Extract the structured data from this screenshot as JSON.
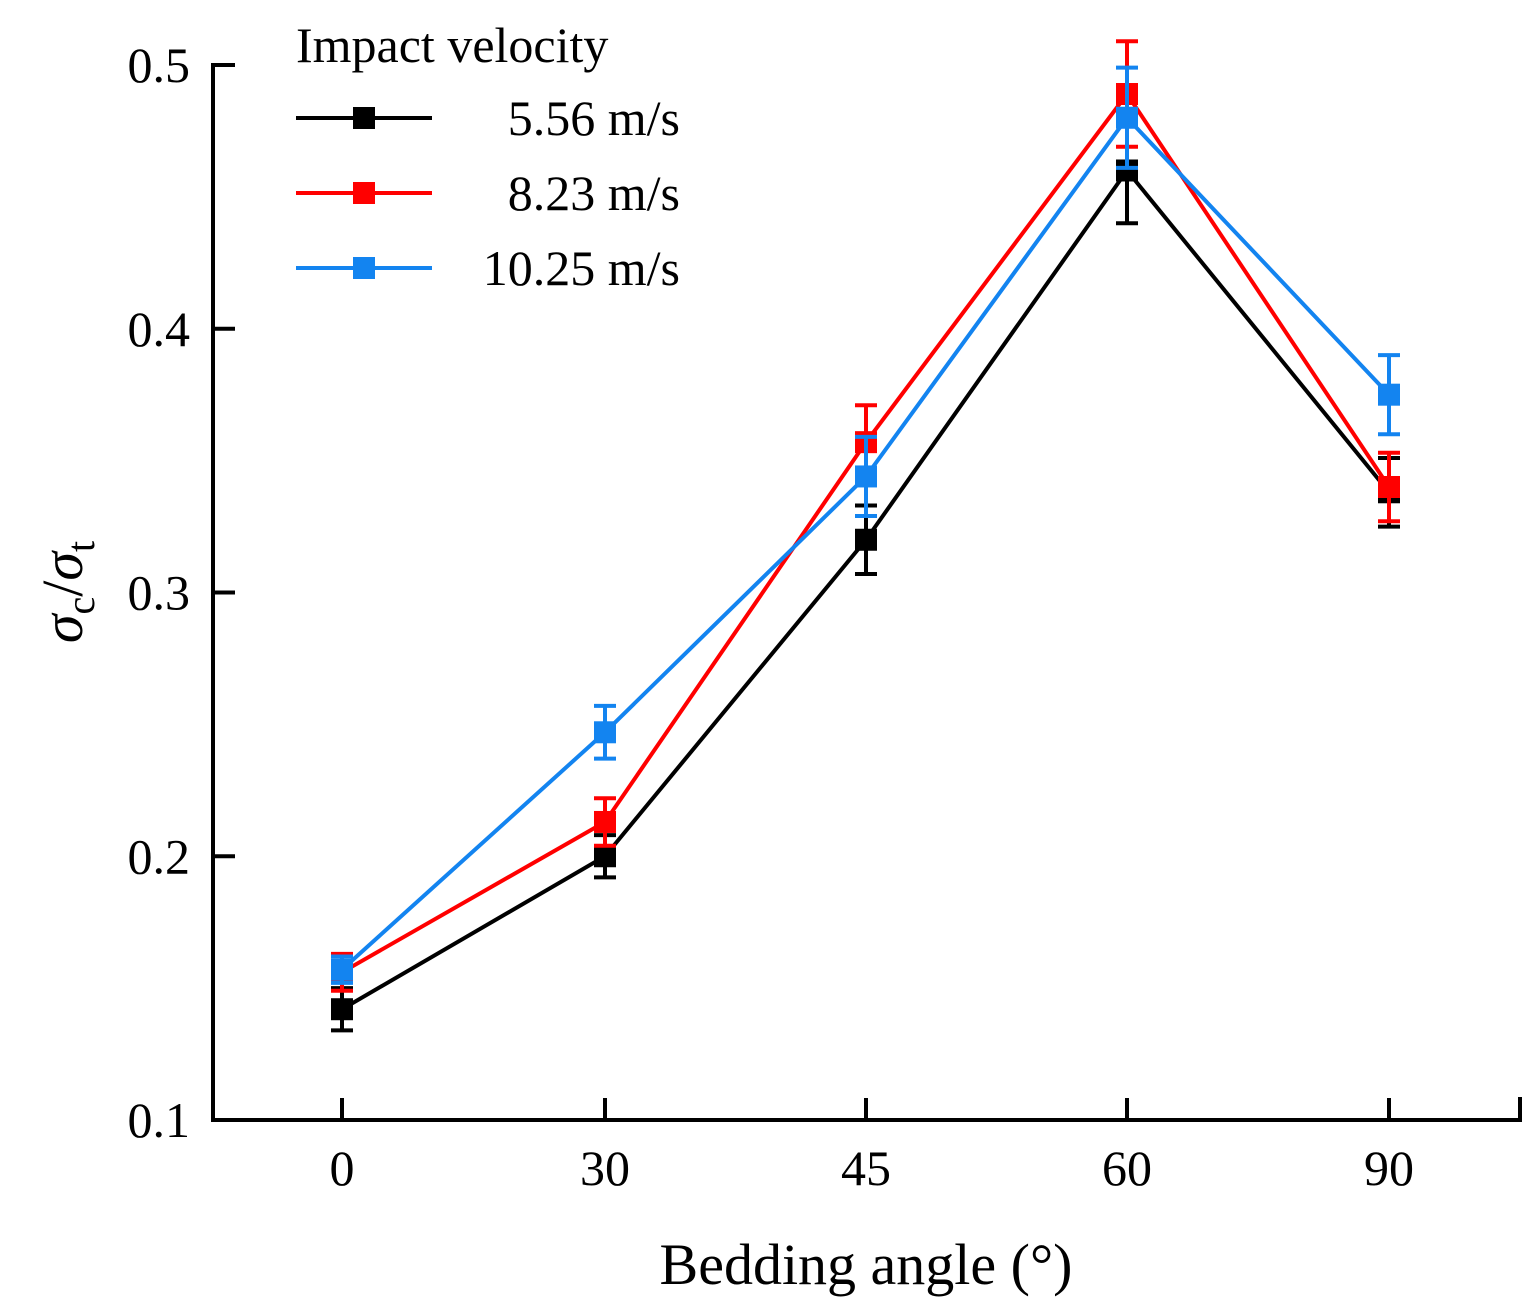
{
  "chart_data": {
    "type": "line",
    "title": "",
    "xlabel": "Bedding angle (°)",
    "ylabel": {
      "symbol": "σ",
      "num_sub": "c",
      "slash": "/",
      "den_sub": "t"
    },
    "categories": [
      "0",
      "30",
      "45",
      "60",
      "90"
    ],
    "ylim": [
      0.1,
      0.5
    ],
    "yticks": [
      {
        "value": 0.1,
        "label": "0.1"
      },
      {
        "value": 0.2,
        "label": "0.2"
      },
      {
        "value": 0.3,
        "label": "0.3"
      },
      {
        "value": 0.4,
        "label": "0.4"
      },
      {
        "value": 0.5,
        "label": "0.5"
      }
    ],
    "grid": false,
    "legend": {
      "title": "Impact velocity",
      "position": "top-left"
    },
    "series": [
      {
        "name": "5.56 m/s",
        "color": "#000000",
        "values": [
          0.142,
          0.2,
          0.32,
          0.46,
          0.338
        ],
        "errors": [
          0.008,
          0.008,
          0.013,
          0.02,
          0.013
        ]
      },
      {
        "name": "8.23 m/s",
        "color": "#ff0000",
        "values": [
          0.156,
          0.213,
          0.357,
          0.489,
          0.34
        ],
        "errors": [
          0.007,
          0.009,
          0.014,
          0.02,
          0.013
        ]
      },
      {
        "name": "10.25 m/s",
        "color": "#1384f0",
        "values": [
          0.157,
          0.247,
          0.344,
          0.48,
          0.375
        ],
        "errors": [
          0.005,
          0.01,
          0.015,
          0.019,
          0.015
        ]
      }
    ]
  }
}
